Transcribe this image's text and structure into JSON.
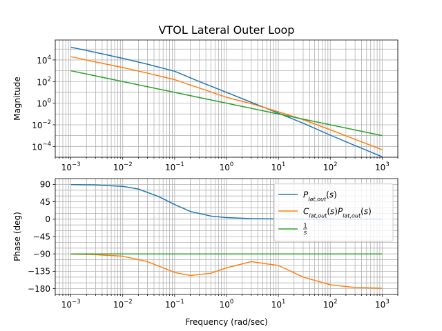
{
  "title": "VTOL Lateral Outer Loop",
  "colors": {
    "P": "#1f77b4",
    "CP": "#ff7f0e",
    "int": "#2ca02c",
    "grid": "#b0b0b0"
  },
  "chart_data": [
    {
      "type": "line",
      "title": "VTOL Lateral Outer Loop",
      "xlabel": "",
      "ylabel": "Magnitude",
      "xscale": "log",
      "yscale": "log",
      "xlim": [
        0.0005,
        2000
      ],
      "ylim": [
        1e-05,
        700000
      ],
      "grid": true,
      "xticks": [
        0.001,
        0.01,
        0.1,
        1,
        10,
        100,
        1000
      ],
      "xtick_labels": [
        {
          "base": "10",
          "exp": "−3"
        },
        {
          "base": "10",
          "exp": "−2"
        },
        {
          "base": "10",
          "exp": "−1"
        },
        {
          "base": "10",
          "exp": "0"
        },
        {
          "base": "10",
          "exp": "1"
        },
        {
          "base": "10",
          "exp": "2"
        },
        {
          "base": "10",
          "exp": "3"
        }
      ],
      "yticks": [
        0.0001,
        0.01,
        1,
        100,
        10000
      ],
      "ytick_labels": [
        {
          "base": "10",
          "exp": "−4"
        },
        {
          "base": "10",
          "exp": "−2"
        },
        {
          "base": "10",
          "exp": "0"
        },
        {
          "base": "10",
          "exp": "2"
        },
        {
          "base": "10",
          "exp": "4"
        }
      ],
      "series": [
        {
          "key": "P",
          "x": [
            0.001,
            0.003,
            0.01,
            0.03,
            0.1,
            0.3,
            1,
            3,
            10,
            30,
            100,
            300,
            1000
          ],
          "values": [
            150000,
            50000,
            14000,
            4000,
            900,
            100,
            10,
            1.2,
            0.12,
            0.014,
            0.0011,
            0.00012,
            1.1e-05
          ]
        },
        {
          "key": "CP",
          "x": [
            0.001,
            0.003,
            0.01,
            0.03,
            0.1,
            0.3,
            1,
            3,
            10,
            30,
            100,
            300,
            1000
          ],
          "values": [
            20000,
            6500,
            2000,
            600,
            150,
            25,
            3.5,
            0.9,
            0.16,
            0.03,
            0.0035,
            0.00045,
            5e-05
          ]
        },
        {
          "key": "int",
          "x": [
            0.001,
            1000
          ],
          "values": [
            1000,
            0.001
          ]
        }
      ]
    },
    {
      "type": "line",
      "xlabel": "Frequency (rad/sec)",
      "ylabel": "Phase (deg)",
      "xscale": "log",
      "xlim": [
        0.0005,
        2000
      ],
      "ylim": [
        -195,
        105
      ],
      "grid": true,
      "xticks": [
        0.001,
        0.01,
        0.1,
        1,
        10,
        100,
        1000
      ],
      "xtick_labels": [
        {
          "base": "10",
          "exp": "−3"
        },
        {
          "base": "10",
          "exp": "−2"
        },
        {
          "base": "10",
          "exp": "−1"
        },
        {
          "base": "10",
          "exp": "0"
        },
        {
          "base": "10",
          "exp": "1"
        },
        {
          "base": "10",
          "exp": "2"
        },
        {
          "base": "10",
          "exp": "3"
        }
      ],
      "yticks": [
        90,
        45,
        0,
        -45,
        -90,
        -135,
        -180
      ],
      "ytick_labels": [
        "90",
        "45",
        "0",
        "−45",
        "−90",
        "−135",
        "−180"
      ],
      "legend": {
        "placement": "upper right",
        "entries": [
          {
            "key": "P",
            "label_html": "<i>P</i><tspan baseline-shift=\"sub\" font-size=\"8\"><tspan font-style=\"italic\">lat</tspan>,<tspan font-style=\"italic\">out</tspan></tspan>(<i>s</i>)"
          },
          {
            "key": "CP",
            "label_html": "<i>C</i><tspan baseline-shift=\"sub\" font-size=\"8\"><tspan font-style=\"italic\">lat</tspan>,<tspan font-style=\"italic\">out</tspan></tspan>(<i>s</i>)<i>P</i><tspan baseline-shift=\"sub\" font-size=\"8\"><tspan font-style=\"italic\">lat</tspan>,<tspan font-style=\"italic\">out</tspan></tspan>(<i>s</i>)"
          },
          {
            "key": "int",
            "label_html": "frac"
          }
        ]
      },
      "series": [
        {
          "key": "P",
          "x": [
            0.001,
            0.003,
            0.01,
            0.02,
            0.05,
            0.1,
            0.2,
            0.5,
            1,
            3,
            10,
            30,
            100,
            300,
            1000
          ],
          "values": [
            89.5,
            88.5,
            85,
            78,
            58,
            38,
            20,
            8,
            4,
            1.5,
            0.5,
            0.2,
            0.1,
            0.05,
            0.02
          ]
        },
        {
          "key": "CP",
          "x": [
            0.001,
            0.003,
            0.01,
            0.03,
            0.1,
            0.2,
            0.5,
            1,
            3,
            10,
            30,
            100,
            300,
            1000
          ],
          "values": [
            -90.5,
            -92,
            -96,
            -110,
            -138,
            -146,
            -140,
            -126,
            -110,
            -120,
            -150,
            -170,
            -177,
            -179
          ]
        },
        {
          "key": "int",
          "x": [
            0.001,
            1000
          ],
          "values": [
            -90,
            -90
          ]
        }
      ]
    }
  ]
}
